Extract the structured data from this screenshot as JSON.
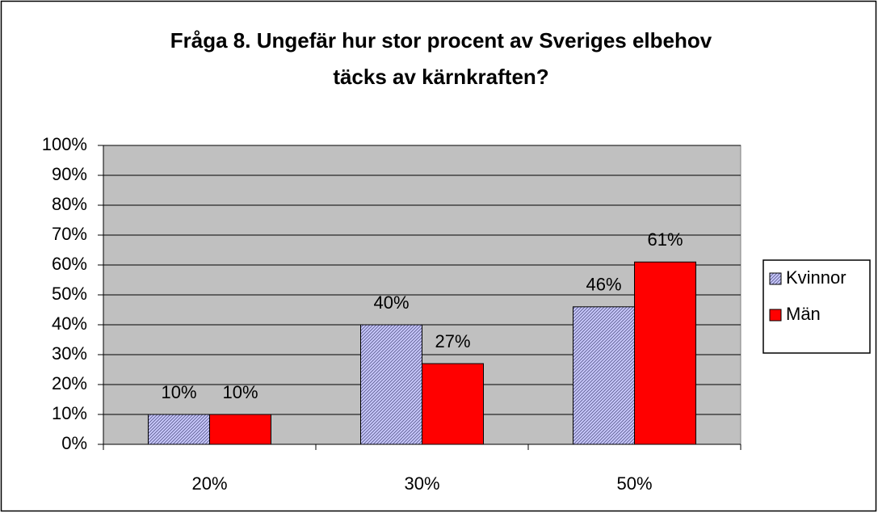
{
  "chart_data": {
    "type": "bar",
    "title": [
      "Fråga 8. Ungefär hur stor procent av Sveriges elbehov",
      "täcks av kärnkraften?"
    ],
    "categories": [
      "20%",
      "30%",
      "50%"
    ],
    "series": [
      {
        "name": "Kvinnor",
        "color": "#ccccff",
        "values": [
          10,
          40,
          46
        ],
        "value_labels": [
          "10%",
          "40%",
          "46%"
        ]
      },
      {
        "name": "Män",
        "color": "#ff0000",
        "values": [
          10,
          27,
          61
        ],
        "value_labels": [
          "10%",
          "27%",
          "61%"
        ]
      }
    ],
    "ylim": [
      0,
      100
    ],
    "yticks": [
      {
        "value": 0,
        "label": "0%"
      },
      {
        "value": 10,
        "label": "10%"
      },
      {
        "value": 20,
        "label": "20%"
      },
      {
        "value": 30,
        "label": "30%"
      },
      {
        "value": 40,
        "label": "40%"
      },
      {
        "value": 50,
        "label": "50%"
      },
      {
        "value": 60,
        "label": "60%"
      },
      {
        "value": 70,
        "label": "70%"
      },
      {
        "value": 80,
        "label": "80%"
      },
      {
        "value": 90,
        "label": "90%"
      },
      {
        "value": 100,
        "label": "100%"
      }
    ],
    "grid": true,
    "legend": "right"
  }
}
